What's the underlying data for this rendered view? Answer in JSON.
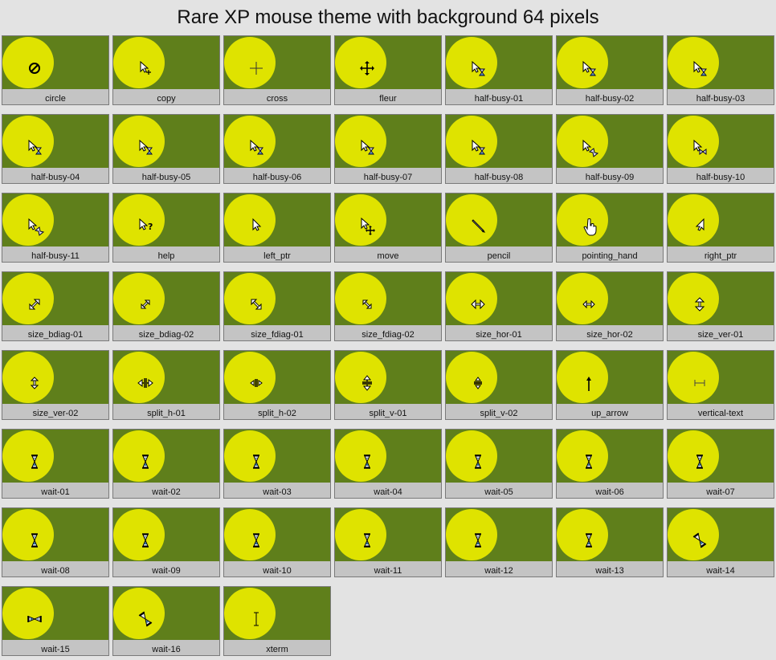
{
  "page_title": "Rare XP mouse theme with background 64 pixels",
  "colors": {
    "page_background": "#e3e3e3",
    "cell_background": "#5f7f1b",
    "disc": "#dfe300",
    "label_strip": "#c4c4c4"
  },
  "cursors": [
    {
      "label": "circle",
      "icon": "circle-icon"
    },
    {
      "label": "copy",
      "icon": "copy-icon"
    },
    {
      "label": "cross",
      "icon": "cross-icon"
    },
    {
      "label": "fleur",
      "icon": "fleur-icon"
    },
    {
      "label": "half-busy-01",
      "icon": "half-busy-icon"
    },
    {
      "label": "half-busy-02",
      "icon": "half-busy-icon"
    },
    {
      "label": "half-busy-03",
      "icon": "half-busy-icon"
    },
    {
      "label": "half-busy-04",
      "icon": "half-busy-icon"
    },
    {
      "label": "half-busy-05",
      "icon": "half-busy-icon"
    },
    {
      "label": "half-busy-06",
      "icon": "half-busy-icon"
    },
    {
      "label": "half-busy-07",
      "icon": "half-busy-icon"
    },
    {
      "label": "half-busy-08",
      "icon": "half-busy-icon"
    },
    {
      "label": "half-busy-09",
      "icon": "half-busy-tilted-icon"
    },
    {
      "label": "half-busy-10",
      "icon": "half-busy-sideways-icon"
    },
    {
      "label": "half-busy-11",
      "icon": "half-busy-tilted-icon"
    },
    {
      "label": "help",
      "icon": "help-icon"
    },
    {
      "label": "left_ptr",
      "icon": "left-ptr-icon"
    },
    {
      "label": "move",
      "icon": "move-icon"
    },
    {
      "label": "pencil",
      "icon": "pencil-icon"
    },
    {
      "label": "pointing_hand",
      "icon": "pointing-hand-icon"
    },
    {
      "label": "right_ptr",
      "icon": "right-ptr-icon"
    },
    {
      "label": "size_bdiag-01",
      "icon": "size-bdiag-icon"
    },
    {
      "label": "size_bdiag-02",
      "icon": "size-bdiag-small-icon"
    },
    {
      "label": "size_fdiag-01",
      "icon": "size-fdiag-icon"
    },
    {
      "label": "size_fdiag-02",
      "icon": "size-fdiag-small-icon"
    },
    {
      "label": "size_hor-01",
      "icon": "size-hor-icon"
    },
    {
      "label": "size_hor-02",
      "icon": "size-hor-small-icon"
    },
    {
      "label": "size_ver-01",
      "icon": "size-ver-icon"
    },
    {
      "label": "size_ver-02",
      "icon": "size-ver-small-icon"
    },
    {
      "label": "split_h-01",
      "icon": "split-h-icon"
    },
    {
      "label": "split_h-02",
      "icon": "split-h-small-icon"
    },
    {
      "label": "split_v-01",
      "icon": "split-v-icon"
    },
    {
      "label": "split_v-02",
      "icon": "split-v-small-icon"
    },
    {
      "label": "up_arrow",
      "icon": "up-arrow-icon"
    },
    {
      "label": "vertical-text",
      "icon": "vertical-text-icon"
    },
    {
      "label": "wait-01",
      "icon": "hourglass-icon"
    },
    {
      "label": "wait-02",
      "icon": "hourglass-icon"
    },
    {
      "label": "wait-03",
      "icon": "hourglass-icon"
    },
    {
      "label": "wait-04",
      "icon": "hourglass-icon"
    },
    {
      "label": "wait-05",
      "icon": "hourglass-icon"
    },
    {
      "label": "wait-06",
      "icon": "hourglass-icon"
    },
    {
      "label": "wait-07",
      "icon": "hourglass-icon"
    },
    {
      "label": "wait-08",
      "icon": "hourglass-icon"
    },
    {
      "label": "wait-09",
      "icon": "hourglass-icon"
    },
    {
      "label": "wait-10",
      "icon": "hourglass-icon"
    },
    {
      "label": "wait-11",
      "icon": "hourglass-icon"
    },
    {
      "label": "wait-12",
      "icon": "hourglass-icon"
    },
    {
      "label": "wait-13",
      "icon": "hourglass-icon"
    },
    {
      "label": "wait-14",
      "icon": "hourglass-tilted-icon"
    },
    {
      "label": "wait-15",
      "icon": "hourglass-sideways-icon"
    },
    {
      "label": "wait-16",
      "icon": "hourglass-tilted-icon"
    },
    {
      "label": "xterm",
      "icon": "xterm-icon"
    }
  ]
}
